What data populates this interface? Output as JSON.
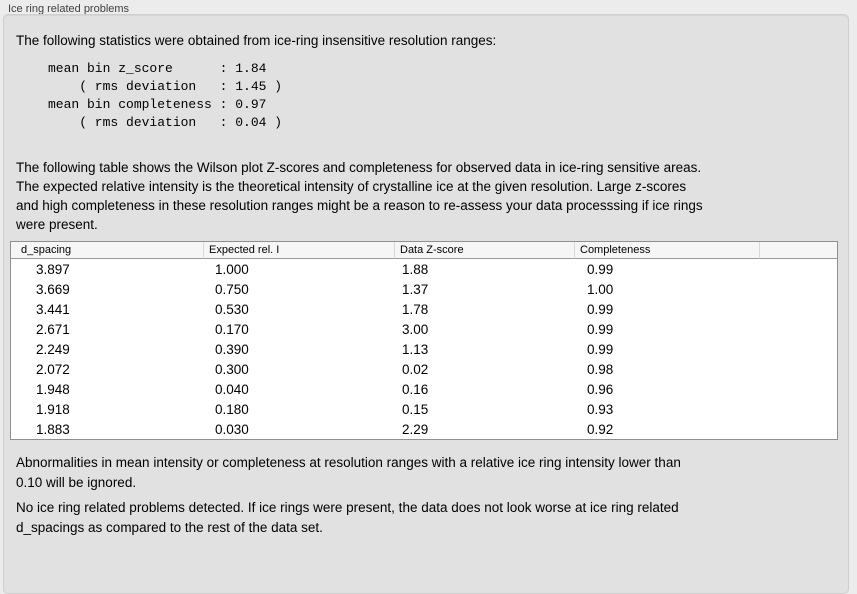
{
  "panel": {
    "title": "Ice ring related problems"
  },
  "intro": {
    "text": "The following statistics were obtained from ice-ring insensitive resolution ranges:"
  },
  "stats": {
    "block": "mean bin z_score      : 1.84\n    ( rms deviation   : 1.45 )\nmean bin completeness : 0.97\n    ( rms deviation   : 0.04 )"
  },
  "table_intro": {
    "text": "The following table shows the Wilson plot Z-scores and completeness for observed data in ice-ring sensitive areas.\nThe expected relative intensity is the theoretical intensity of crystalline ice at the given resolution. Large z-scores\nand high completeness in these resolution ranges might be a reason to re-assess your data processsing if ice rings\nwere present."
  },
  "table": {
    "columns": [
      "d_spacing",
      "Expected rel. I",
      "Data Z-score",
      "Completeness",
      ""
    ],
    "rows": [
      [
        "3.897",
        "1.000",
        "1.88",
        "0.99",
        ""
      ],
      [
        "3.669",
        "0.750",
        "1.37",
        "1.00",
        ""
      ],
      [
        "3.441",
        "0.530",
        "1.78",
        "0.99",
        ""
      ],
      [
        "2.671",
        "0.170",
        "3.00",
        "0.99",
        ""
      ],
      [
        "2.249",
        "0.390",
        "1.13",
        "0.99",
        ""
      ],
      [
        "2.072",
        "0.300",
        "0.02",
        "0.98",
        ""
      ],
      [
        "1.948",
        "0.040",
        "0.16",
        "0.96",
        ""
      ],
      [
        "1.918",
        "0.180",
        "0.15",
        "0.93",
        ""
      ],
      [
        "1.883",
        "0.030",
        "2.29",
        "0.92",
        ""
      ]
    ]
  },
  "note": {
    "text": "Abnormalities in mean intensity or completeness at resolution ranges with a relative ice ring intensity lower than\n0.10 will be ignored."
  },
  "conclusion": {
    "text": "No ice ring related problems detected. If ice rings were present, the data does not look worse at ice ring related\nd_spacings as compared to the rest of the data set."
  },
  "colors": {
    "page_background": "#ececec",
    "groupbox_background": "#e1e1e1",
    "table_border": "#8f8f8f",
    "text": "#000000"
  }
}
